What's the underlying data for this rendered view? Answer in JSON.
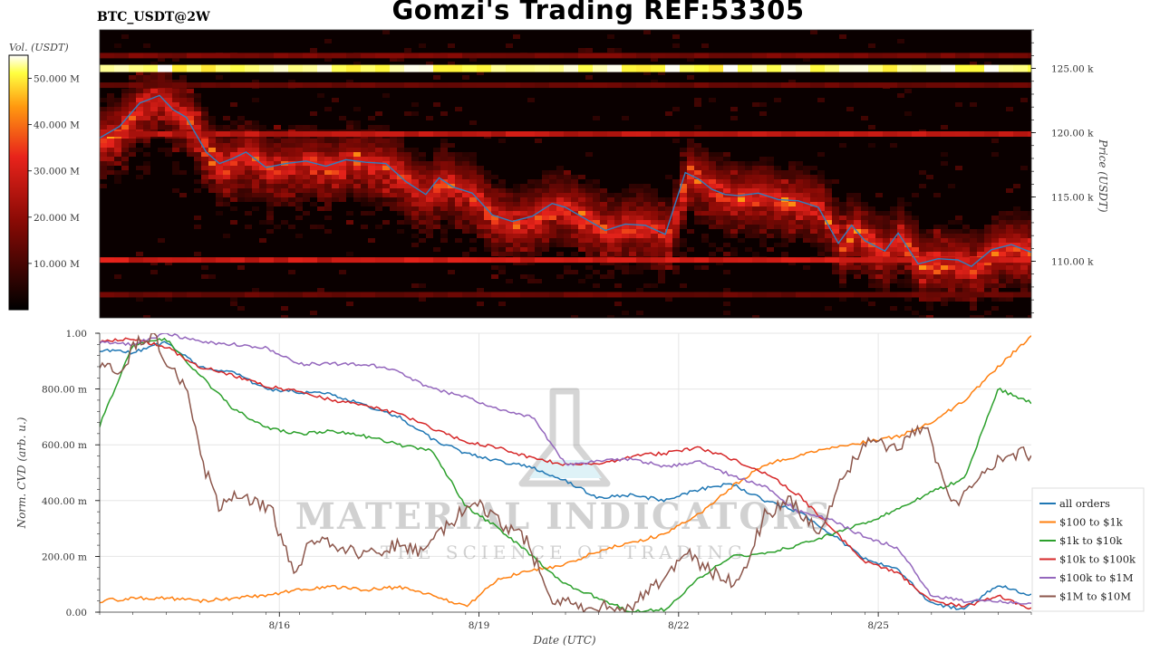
{
  "header": {
    "title": "Gomzi's Trading REF:53305",
    "symbol": "BTC_USDT@2W"
  },
  "watermark": {
    "line1": "MATERIAL INDICATORS",
    "line2": "THE SCIENCE OF TRADING"
  },
  "colors": {
    "price_line": "#2f7fc1",
    "heatmap_low": "#000000",
    "heatmap_mid": "#e8231b",
    "heatmap_high": "#ffffff"
  },
  "chart_data": [
    {
      "type": "heatmap",
      "title": "BTC_USDT@2W",
      "colorbar_label": "Vol. (USDT)",
      "colorbar_ticks": [
        "10.000 M",
        "20.000 M",
        "30.000 M",
        "40.000 M",
        "50.000 M"
      ],
      "colorbar_values": [
        10,
        20,
        30,
        40,
        50
      ],
      "colorbar_range": [
        0,
        55
      ],
      "ylabel": "Price (USDT)",
      "y_ticks": [
        "110.00 k",
        "115.00 k",
        "120.00 k",
        "125.00 k"
      ],
      "y_tick_values": [
        110,
        115,
        120,
        125
      ],
      "ylim": [
        105.6,
        128
      ],
      "xlim": [
        0,
        14
      ],
      "liquidity_bands": [
        {
          "price": 125.0,
          "intensity": 1.0
        },
        {
          "price": 119.9,
          "intensity": 0.55
        },
        {
          "price": 110.1,
          "intensity": 0.6
        },
        {
          "price": 126.0,
          "intensity": 0.35
        },
        {
          "price": 123.7,
          "intensity": 0.3
        },
        {
          "price": 107.4,
          "intensity": 0.3
        }
      ],
      "price_series": {
        "name": "price",
        "x": [
          0,
          0.3,
          0.6,
          0.9,
          1.1,
          1.3,
          1.6,
          1.8,
          2.0,
          2.2,
          2.5,
          2.8,
          3.1,
          3.4,
          3.7,
          4.0,
          4.3,
          4.6,
          4.9,
          5.1,
          5.3,
          5.6,
          5.9,
          6.2,
          6.5,
          6.8,
          7.0,
          7.3,
          7.6,
          7.9,
          8.2,
          8.5,
          8.8,
          9.0,
          9.2,
          9.4,
          9.6,
          9.9,
          10.2,
          10.5,
          10.8,
          11.1,
          11.3,
          11.5,
          11.8,
          12.0,
          12.3,
          12.6,
          12.9,
          13.1,
          13.4,
          13.7,
          14.0
        ],
        "y": [
          119.6,
          120.5,
          122.3,
          122.9,
          121.8,
          121.2,
          118.5,
          117.6,
          118.0,
          118.5,
          117.3,
          117.6,
          117.8,
          117.4,
          117.9,
          117.7,
          117.6,
          116.2,
          115.2,
          116.5,
          115.8,
          115.3,
          113.6,
          113.1,
          113.5,
          114.5,
          114.2,
          113.3,
          112.4,
          112.9,
          112.8,
          112.1,
          116.9,
          116.4,
          115.6,
          115.2,
          115.1,
          115.3,
          114.8,
          114.7,
          114.2,
          111.4,
          112.8,
          111.6,
          110.8,
          112.2,
          109.8,
          110.2,
          110.1,
          109.6,
          110.9,
          111.3,
          110.7
        ]
      }
    },
    {
      "type": "line",
      "xlabel": "Date (UTC)",
      "ylabel": "Norm. CVD (arb. u.)",
      "x_ticks": [
        "8/16",
        "8/19",
        "8/22",
        "8/25"
      ],
      "x_tick_values": [
        2.7,
        5.7,
        8.7,
        11.7
      ],
      "xlim": [
        0,
        14
      ],
      "y_ticks": [
        "0.00",
        "200.00 m",
        "400.00 m",
        "600.00 m",
        "800.00 m",
        "1.00"
      ],
      "y_tick_values": [
        0,
        0.2,
        0.4,
        0.6,
        0.8,
        1.0
      ],
      "ylim": [
        0,
        1
      ],
      "grid": true,
      "legend_position": "bottom-right",
      "series": [
        {
          "name": "all orders",
          "color": "#1f77b4",
          "x": [
            0,
            0.5,
            1.0,
            1.5,
            2.0,
            2.5,
            3.0,
            3.5,
            4.0,
            4.5,
            5.0,
            5.5,
            6.0,
            6.5,
            7.0,
            7.5,
            8.0,
            8.5,
            9.0,
            9.5,
            10.0,
            10.5,
            11.0,
            11.5,
            12.0,
            12.5,
            13.0,
            13.5,
            14.0
          ],
          "y": [
            0.94,
            0.93,
            0.97,
            0.88,
            0.86,
            0.8,
            0.79,
            0.78,
            0.74,
            0.7,
            0.62,
            0.57,
            0.54,
            0.52,
            0.47,
            0.41,
            0.42,
            0.4,
            0.44,
            0.46,
            0.4,
            0.36,
            0.28,
            0.19,
            0.15,
            0.03,
            0.01,
            0.1,
            0.06
          ]
        },
        {
          "name": "$100 to $1k",
          "color": "#ff7f0e",
          "x": [
            0,
            0.5,
            1.0,
            1.5,
            2.0,
            2.5,
            3.0,
            3.5,
            4.0,
            4.5,
            5.0,
            5.5,
            6.0,
            6.5,
            7.0,
            7.5,
            8.0,
            8.5,
            9.0,
            9.5,
            10.0,
            10.5,
            11.0,
            11.5,
            12.0,
            12.5,
            13.0,
            13.5,
            14.0
          ],
          "y": [
            0.04,
            0.05,
            0.05,
            0.04,
            0.05,
            0.06,
            0.08,
            0.09,
            0.08,
            0.09,
            0.06,
            0.02,
            0.12,
            0.15,
            0.17,
            0.22,
            0.25,
            0.28,
            0.35,
            0.45,
            0.53,
            0.56,
            0.59,
            0.61,
            0.63,
            0.68,
            0.76,
            0.88,
            0.99
          ]
        },
        {
          "name": "$1k to $10k",
          "color": "#2ca02c",
          "x": [
            0,
            0.5,
            1.0,
            1.5,
            2.0,
            2.5,
            3.0,
            3.5,
            4.0,
            4.5,
            5.0,
            5.5,
            6.0,
            6.5,
            7.0,
            7.5,
            8.0,
            8.5,
            9.0,
            9.5,
            10.0,
            10.5,
            11.0,
            11.5,
            12.0,
            12.5,
            13.0,
            13.5,
            14.0
          ],
          "y": [
            0.67,
            0.96,
            0.98,
            0.85,
            0.73,
            0.66,
            0.64,
            0.65,
            0.63,
            0.6,
            0.58,
            0.38,
            0.3,
            0.2,
            0.1,
            0.05,
            0.0,
            0.01,
            0.12,
            0.2,
            0.21,
            0.24,
            0.28,
            0.32,
            0.37,
            0.43,
            0.48,
            0.8,
            0.75
          ]
        },
        {
          "name": "$10k to $100k",
          "color": "#d62728",
          "x": [
            0,
            0.5,
            1.0,
            1.5,
            2.0,
            2.5,
            3.0,
            3.5,
            4.0,
            4.5,
            5.0,
            5.5,
            6.0,
            6.5,
            7.0,
            7.5,
            8.0,
            8.5,
            9.0,
            9.5,
            10.0,
            10.5,
            11.0,
            11.5,
            12.0,
            12.5,
            13.0,
            13.5,
            14.0
          ],
          "y": [
            0.97,
            0.98,
            0.95,
            0.88,
            0.85,
            0.81,
            0.79,
            0.76,
            0.74,
            0.71,
            0.66,
            0.61,
            0.59,
            0.55,
            0.53,
            0.53,
            0.56,
            0.57,
            0.59,
            0.55,
            0.5,
            0.42,
            0.3,
            0.18,
            0.14,
            0.04,
            0.02,
            0.06,
            0.01
          ]
        },
        {
          "name": "$100k to $1M",
          "color": "#9467bd",
          "x": [
            0,
            0.5,
            1.0,
            1.5,
            2.0,
            2.5,
            3.0,
            3.5,
            4.0,
            4.5,
            5.0,
            5.5,
            6.0,
            6.5,
            7.0,
            7.5,
            8.0,
            8.5,
            9.0,
            9.5,
            10.0,
            10.5,
            11.0,
            11.5,
            12.0,
            12.5,
            13.0,
            13.5,
            14.0
          ],
          "y": [
            0.97,
            0.96,
            1.0,
            0.97,
            0.96,
            0.95,
            0.89,
            0.89,
            0.89,
            0.86,
            0.8,
            0.77,
            0.73,
            0.7,
            0.53,
            0.54,
            0.55,
            0.52,
            0.54,
            0.49,
            0.45,
            0.36,
            0.33,
            0.27,
            0.23,
            0.06,
            0.04,
            0.04,
            0.03
          ]
        },
        {
          "name": "$1M to $10M",
          "color": "#8c564b",
          "x": [
            0,
            0.3,
            0.5,
            0.8,
            1.0,
            1.3,
            1.6,
            1.8,
            2.0,
            2.3,
            2.6,
            2.9,
            3.2,
            3.6,
            4.0,
            4.4,
            4.8,
            5.2,
            5.6,
            6.0,
            6.4,
            6.8,
            7.2,
            7.6,
            8.0,
            8.4,
            8.8,
            9.2,
            9.6,
            10.0,
            10.4,
            10.8,
            11.2,
            11.6,
            12.0,
            12.4,
            12.8,
            13.2,
            13.6,
            14.0
          ],
          "y": [
            0.9,
            0.85,
            0.95,
            1.0,
            0.9,
            0.8,
            0.5,
            0.38,
            0.42,
            0.4,
            0.36,
            0.14,
            0.26,
            0.24,
            0.2,
            0.24,
            0.22,
            0.3,
            0.4,
            0.32,
            0.26,
            0.05,
            0.02,
            0.03,
            0.02,
            0.1,
            0.22,
            0.14,
            0.1,
            0.35,
            0.4,
            0.28,
            0.5,
            0.62,
            0.58,
            0.68,
            0.38,
            0.48,
            0.56,
            0.57
          ]
        }
      ]
    }
  ]
}
